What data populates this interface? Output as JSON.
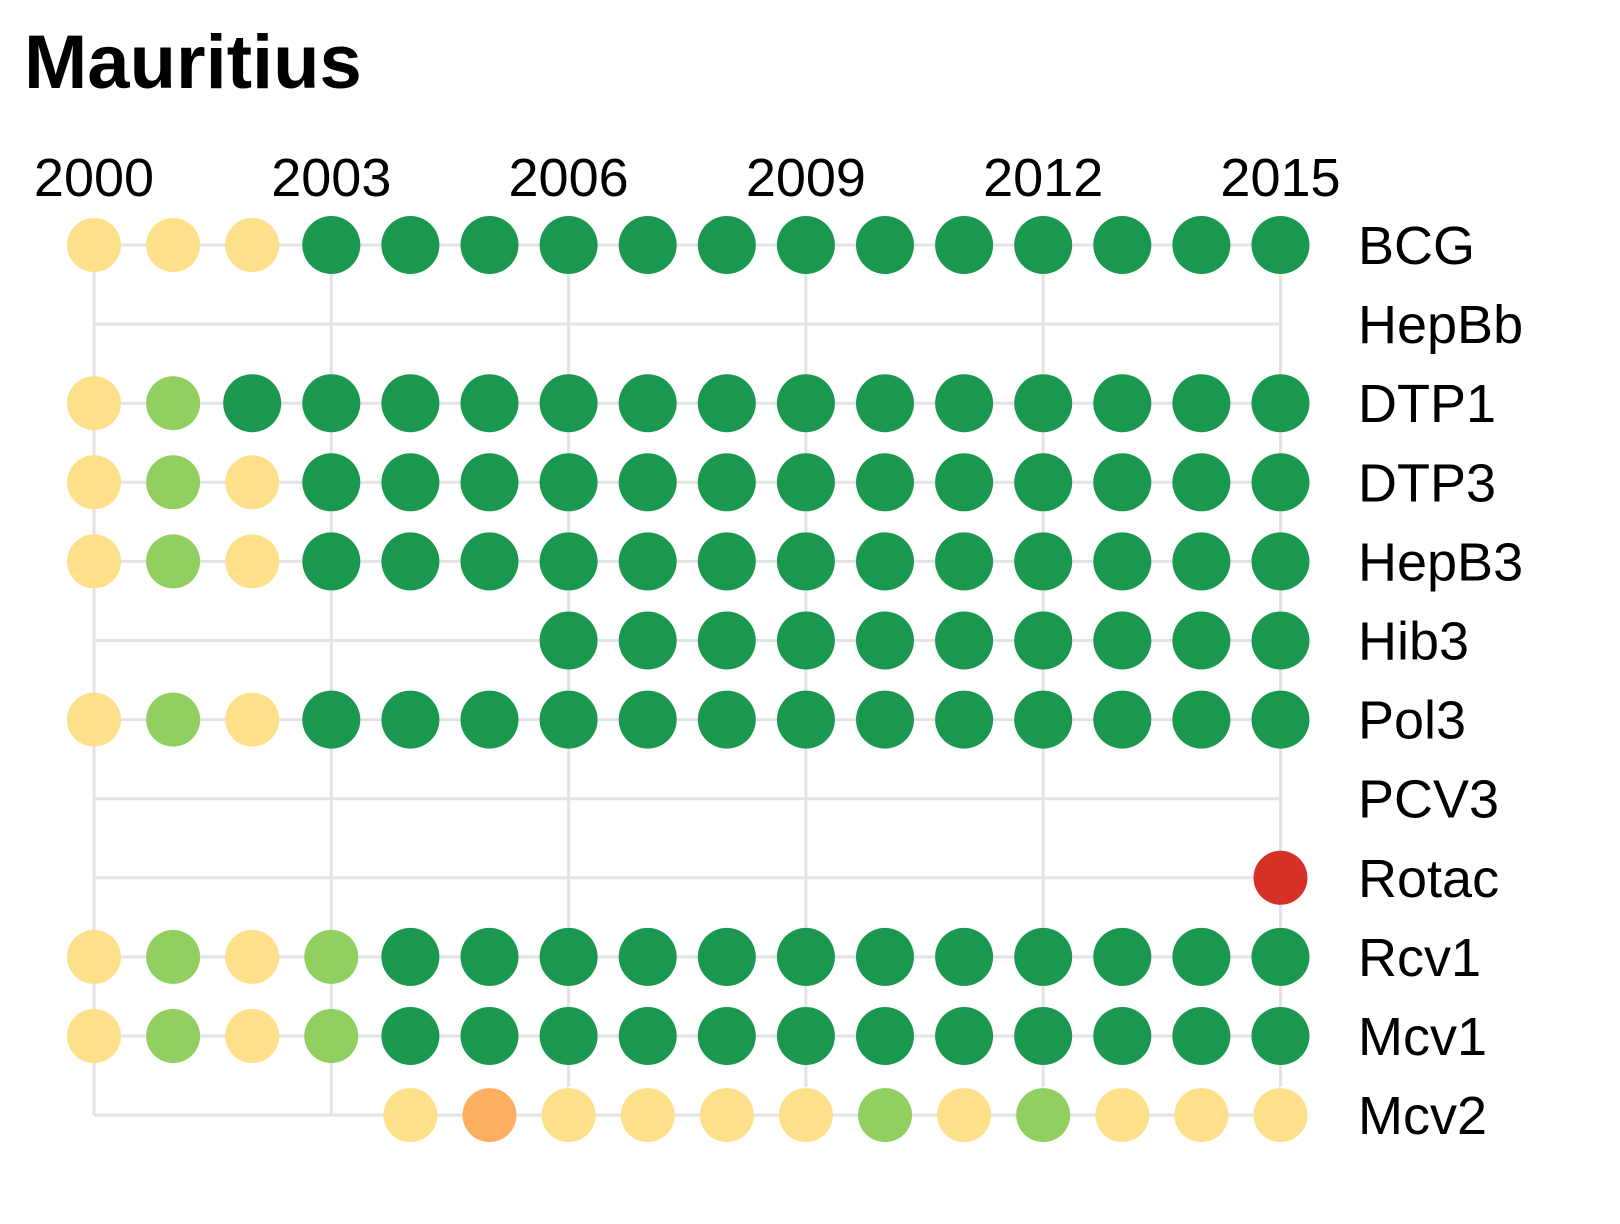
{
  "chart_data": {
    "type": "scatter",
    "title": "Mauritius",
    "x": [
      2000,
      2001,
      2002,
      2003,
      2004,
      2005,
      2006,
      2007,
      2008,
      2009,
      2010,
      2011,
      2012,
      2013,
      2014,
      2015
    ],
    "x_tick_labels": [
      "2000",
      "2003",
      "2006",
      "2009",
      "2012",
      "2015"
    ],
    "colors": {
      "dark_green": "#1a9850",
      "light_green": "#91cf60",
      "yellow": "#fee08b",
      "orange": "#fdae61",
      "red": "#d73027",
      "grid": "#e3e3e3"
    },
    "series": [
      {
        "name": "BCG",
        "points": [
          "yellow",
          "yellow",
          "yellow",
          "dark_green",
          "dark_green",
          "dark_green",
          "dark_green",
          "dark_green",
          "dark_green",
          "dark_green",
          "dark_green",
          "dark_green",
          "dark_green",
          "dark_green",
          "dark_green",
          "dark_green"
        ]
      },
      {
        "name": "HepBb",
        "points": [
          null,
          null,
          null,
          null,
          null,
          null,
          null,
          null,
          null,
          null,
          null,
          null,
          null,
          null,
          null,
          null
        ]
      },
      {
        "name": "DTP1",
        "points": [
          "yellow",
          "light_green",
          "dark_green",
          "dark_green",
          "dark_green",
          "dark_green",
          "dark_green",
          "dark_green",
          "dark_green",
          "dark_green",
          "dark_green",
          "dark_green",
          "dark_green",
          "dark_green",
          "dark_green",
          "dark_green"
        ]
      },
      {
        "name": "DTP3",
        "points": [
          "yellow",
          "light_green",
          "yellow",
          "dark_green",
          "dark_green",
          "dark_green",
          "dark_green",
          "dark_green",
          "dark_green",
          "dark_green",
          "dark_green",
          "dark_green",
          "dark_green",
          "dark_green",
          "dark_green",
          "dark_green"
        ]
      },
      {
        "name": "HepB3",
        "points": [
          "yellow",
          "light_green",
          "yellow",
          "dark_green",
          "dark_green",
          "dark_green",
          "dark_green",
          "dark_green",
          "dark_green",
          "dark_green",
          "dark_green",
          "dark_green",
          "dark_green",
          "dark_green",
          "dark_green",
          "dark_green"
        ]
      },
      {
        "name": "Hib3",
        "points": [
          null,
          null,
          null,
          null,
          null,
          null,
          "dark_green",
          "dark_green",
          "dark_green",
          "dark_green",
          "dark_green",
          "dark_green",
          "dark_green",
          "dark_green",
          "dark_green",
          "dark_green"
        ]
      },
      {
        "name": "Pol3",
        "points": [
          "yellow",
          "light_green",
          "yellow",
          "dark_green",
          "dark_green",
          "dark_green",
          "dark_green",
          "dark_green",
          "dark_green",
          "dark_green",
          "dark_green",
          "dark_green",
          "dark_green",
          "dark_green",
          "dark_green",
          "dark_green"
        ]
      },
      {
        "name": "PCV3",
        "points": [
          null,
          null,
          null,
          null,
          null,
          null,
          null,
          null,
          null,
          null,
          null,
          null,
          null,
          null,
          null,
          null
        ]
      },
      {
        "name": "Rotac",
        "points": [
          null,
          null,
          null,
          null,
          null,
          null,
          null,
          null,
          null,
          null,
          null,
          null,
          null,
          null,
          null,
          "red"
        ]
      },
      {
        "name": "Rcv1",
        "points": [
          "yellow",
          "light_green",
          "yellow",
          "light_green",
          "dark_green",
          "dark_green",
          "dark_green",
          "dark_green",
          "dark_green",
          "dark_green",
          "dark_green",
          "dark_green",
          "dark_green",
          "dark_green",
          "dark_green",
          "dark_green"
        ]
      },
      {
        "name": "Mcv1",
        "points": [
          "yellow",
          "light_green",
          "yellow",
          "light_green",
          "dark_green",
          "dark_green",
          "dark_green",
          "dark_green",
          "dark_green",
          "dark_green",
          "dark_green",
          "dark_green",
          "dark_green",
          "dark_green",
          "dark_green",
          "dark_green"
        ]
      },
      {
        "name": "Mcv2",
        "points": [
          null,
          null,
          null,
          null,
          "yellow",
          "orange",
          "yellow",
          "yellow",
          "yellow",
          "yellow",
          "light_green",
          "yellow",
          "light_green",
          "yellow",
          "yellow",
          "yellow"
        ]
      }
    ],
    "grid": true,
    "legend": "none"
  }
}
